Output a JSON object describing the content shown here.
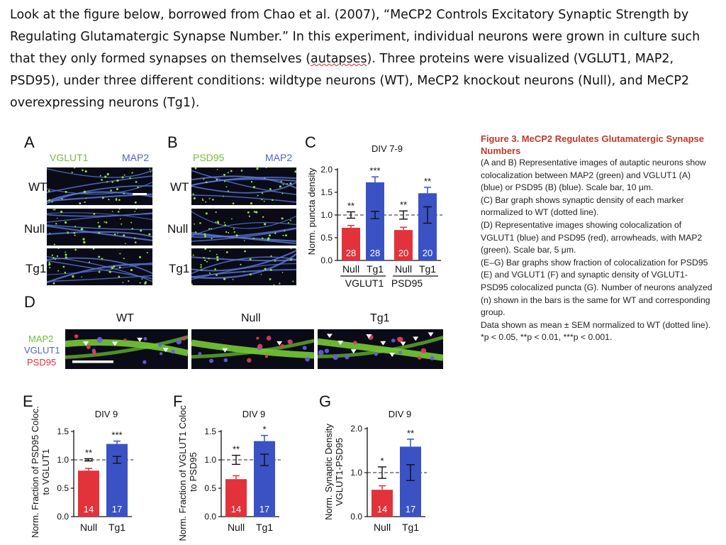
{
  "intro": {
    "part1": "Look at the figure below, borrowed from Chao et al. (2007), “MeCP2 Controls Excitatory Synaptic Strength by Regulating Glutamatergic Synapse Number.”  In this experiment, individual neurons were grown in culture such that they only formed synapses on themselves (",
    "squiggle": "autapses",
    "part2": ").  Three proteins were visualized (VGLUT1, MAP2, PSD95), under three different conditions:  wildtype neurons (WT), MeCP2 knockout neurons (Null), and MeCP2 overexpressing neurons (Tg1)."
  },
  "panelA": {
    "label": "A",
    "stain1": "VGLUT1",
    "stain2": "MAP2",
    "rows": [
      "WT",
      "Null",
      "Tg1"
    ]
  },
  "panelB": {
    "label": "B",
    "stain1": "PSD95",
    "stain2": "MAP2",
    "rows": [
      "WT",
      "Null",
      "Tg1"
    ]
  },
  "panelD": {
    "label": "D",
    "conditions": [
      "WT",
      "Null",
      "Tg1"
    ],
    "legend": [
      "MAP2",
      "VGLUT1",
      "PSD95"
    ]
  },
  "colors": {
    "null_bar": "#e2323a",
    "tg1_bar": "#3a52c4",
    "caption_title": "#c0392b"
  },
  "chart_data": [
    {
      "id": "C",
      "type": "bar",
      "title": "DIV 7-9",
      "ylabel": "Norm. puncta density",
      "ylim": [
        0,
        2.0
      ],
      "ticks": [
        "0.0",
        "0.5",
        "1.0",
        "1.5",
        "2.0"
      ],
      "categories": [
        "Null",
        "Tg1",
        "Null",
        "Tg1"
      ],
      "groups": [
        "VGLUT1",
        "PSD95"
      ],
      "values": [
        0.72,
        1.72,
        0.67,
        1.48
      ],
      "errors": [
        0.05,
        0.12,
        0.06,
        0.13
      ],
      "wt_errors": [
        0.07,
        0.08,
        0.09,
        0.18
      ],
      "n": [
        "28",
        "28",
        "20",
        "20"
      ],
      "significance": [
        "**",
        "***",
        "**",
        "**"
      ],
      "reference_line": 1.0
    },
    {
      "id": "E",
      "type": "bar",
      "title": "DIV 9",
      "ylabel": "Norm. Fraction of PSD95 Coloc. to VGLUT1",
      "ylim": [
        0,
        1.5
      ],
      "ticks": [
        "0.0",
        "0.5",
        "1.0",
        "1.5"
      ],
      "categories": [
        "Null",
        "Tg1"
      ],
      "values": [
        0.81,
        1.28
      ],
      "errors": [
        0.04,
        0.05
      ],
      "wt_errors": [
        0.02,
        0.06
      ],
      "n": [
        "14",
        "17"
      ],
      "significance": [
        "**",
        "***"
      ],
      "reference_line": 1.0
    },
    {
      "id": "F",
      "type": "bar",
      "title": "DIV 9",
      "ylabel": "Norm. Fraction of VGLUT1 Coloc. to PSD95",
      "ylim": [
        0,
        1.5
      ],
      "ticks": [
        "0.0",
        "0.5",
        "1.0",
        "1.5"
      ],
      "categories": [
        "Null",
        "Tg1"
      ],
      "values": [
        0.66,
        1.33
      ],
      "errors": [
        0.06,
        0.1
      ],
      "wt_errors": [
        0.08,
        0.1
      ],
      "n": [
        "14",
        "17"
      ],
      "significance": [
        "**",
        "*"
      ],
      "reference_line": 1.0
    },
    {
      "id": "G",
      "type": "bar",
      "title": "DIV 9",
      "ylabel": "Norm. Synaptic Density VGLUT1-PSD95",
      "ylim": [
        0,
        2.0
      ],
      "ticks": [
        "0.0",
        "1.0",
        "2.0"
      ],
      "categories": [
        "Null",
        "Tg1"
      ],
      "values": [
        0.61,
        1.59
      ],
      "errors": [
        0.09,
        0.17
      ],
      "wt_errors": [
        0.13,
        0.18
      ],
      "n": [
        "14",
        "17"
      ],
      "significance": [
        "*",
        "**"
      ],
      "reference_line": 1.0
    }
  ],
  "caption": {
    "title": "Figure 3.  MeCP2 Regulates Glutamatergic Synapse Numbers",
    "paras": [
      "(A and B) Representative images of autaptic neurons show colocalization between MAP2 (green) and VGLUT1 (A) (blue) or PSD95 (B) (blue). Scale bar, 10 μm.",
      "(C) Bar graph shows synaptic density of each marker normalized to WT (dotted line).",
      "(D) Representative images showing colocalization of VGLUT1 (blue) and PSD95 (red), arrowheads, with MAP2 (green). Scale bar, 5 μm.",
      "(E–G) Bar graphs show fraction of colocalization for PSD95 (E) and VGLUT1 (F) and synaptic density of VGLUT1-PSD95 colocalized puncta (G). Number of neurons analyzed (n) shown in the bars is the same for WT and corresponding group.",
      "Data shown as mean ± SEM normalized to WT (dotted line). *p < 0.05, **p < 0.01, ***p < 0.001."
    ]
  }
}
